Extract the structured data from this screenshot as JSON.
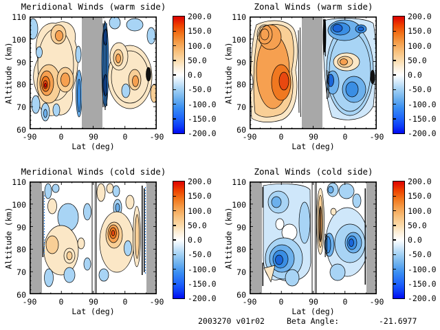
{
  "panels": [
    {
      "key": "meridional-warm",
      "title": "Meridional Winds (warm side)",
      "xlabel": "Lat (deg)",
      "ylabel": "Altitude (km)",
      "x_ticks": [
        "-90",
        "0",
        "90",
        "0",
        "-90"
      ],
      "y_ticks": [
        "110",
        "100",
        "90",
        "80",
        "70",
        "60"
      ]
    },
    {
      "key": "zonal-warm",
      "title": "Zonal Winds (warm side)",
      "xlabel": "Lat (deg)",
      "ylabel": "Altitude (km)",
      "x_ticks": [
        "-90",
        "0",
        "90",
        "0",
        "-90"
      ],
      "y_ticks": [
        "110",
        "100",
        "90",
        "80",
        "70",
        "60"
      ]
    },
    {
      "key": "meridional-cold",
      "title": "Meridional Winds (cold side)",
      "xlabel": "Lat (deg)",
      "ylabel": "Altitude (km)",
      "x_ticks": [
        "-90",
        "0",
        "90",
        "0",
        "-90"
      ],
      "y_ticks": [
        "110",
        "100",
        "90",
        "80",
        "70",
        "60"
      ]
    },
    {
      "key": "zonal-cold",
      "title": "Zonal Winds (cold side)",
      "xlabel": "Lat (deg)",
      "ylabel": "Altitude (km)",
      "x_ticks": [
        "-90",
        "0",
        "90",
        "0",
        "-90"
      ],
      "y_ticks": [
        "110",
        "100",
        "90",
        "80",
        "70",
        "60"
      ]
    }
  ],
  "colorbar": {
    "ticks": [
      "200.0",
      "150.0",
      "100.0",
      "50.0",
      "0.0",
      "-50.0",
      "-100.0",
      "-150.0",
      "-200.0"
    ]
  },
  "footer": {
    "run_id": "2003270 v01r02",
    "beta_label": "Beta Angle:",
    "beta_value": "-21.6977"
  },
  "colors": {
    "positive_max": "#dd0000",
    "positive_mid": "#f6a050",
    "zero": "#ffffff",
    "negative_mid": "#3a8ee4",
    "negative_max": "#0008f0",
    "masked_gray": "#a8a8a8"
  },
  "chart_data": [
    {
      "type": "heatmap",
      "subtype": "filled_contour_latitude_altitude_section",
      "title": "Meridional Winds (warm side)",
      "xlabel": "Lat (deg)",
      "ylabel": "Altitude (km)",
      "x_tick_labels": [
        "-90",
        "0",
        "90",
        "0",
        "-90"
      ],
      "x_axis_note": "latitude runs -90 to +90 (ascending side) then folds back to -90 (descending side)",
      "ylim": [
        60,
        110
      ],
      "y_tick_labels": [
        110,
        100,
        90,
        80,
        70,
        60
      ],
      "colorbar_range": [
        -200,
        200
      ],
      "colorbar_tick_interval": 50,
      "contour_interval": 25,
      "legend_position": "right colorbar",
      "grid": false,
      "masked_regions": [
        "gray vertical band around the +90 fold (lat ~+60 ascending to ~+60 descending)"
      ],
      "features": [
        "Patchy positive (orange) cells to ~+100 on ascending side, strongest near 78-82 km between lat -40 and +40",
        "Small intense core ~+150 near 80 km, lat ~-20",
        "Tight negative (blue) contour band to ~-150 immediately after the gray gap (descending lat ~60-80)",
        "Scattered weak negative cells (-25 to -75) below 75 km and near the poles",
        "Weaker mixed cream/orange cells (+25 to +75) on descending side near 85-100 km"
      ]
    },
    {
      "type": "heatmap",
      "subtype": "filled_contour_latitude_altitude_section",
      "title": "Zonal Winds (warm side)",
      "xlabel": "Lat (deg)",
      "ylabel": "Altitude (km)",
      "x_tick_labels": [
        "-90",
        "0",
        "90",
        "0",
        "-90"
      ],
      "x_axis_note": "latitude runs -90 to +90 (ascending side) then folds back to -90 (descending side)",
      "ylim": [
        60,
        110
      ],
      "y_tick_labels": [
        110,
        100,
        90,
        80,
        70,
        60
      ],
      "colorbar_range": [
        -200,
        200
      ],
      "colorbar_tick_interval": 50,
      "contour_interval": 25,
      "legend_position": "right colorbar",
      "grid": false,
      "masked_regions": [
        "gray vertical band around the +90 fold (lat ~+60 ascending to ~+60 descending)"
      ],
      "features": [
        "Broad strong positive (eastward) region filling the ascending side, peak ~+125 to +150 near 78-82 km, lat +10 to +40",
        "Broad negative (westward) region on descending side, cores ~-125 to -150 near 100-105 km and near 82-90 km",
        "Embedded positive pocket (+25 to +75) near 90-95 km mid-latitude on descending side",
        "Densely packed contours (near-black) hugging both edges of the gray gap"
      ]
    },
    {
      "type": "heatmap",
      "subtype": "filled_contour_latitude_altitude_section",
      "title": "Meridional Winds (cold side)",
      "xlabel": "Lat (deg)",
      "ylabel": "Altitude (km)",
      "x_tick_labels": [
        "-90",
        "0",
        "90",
        "0",
        "-90"
      ],
      "x_axis_note": "latitude runs -90 to +90 (ascending side) then folds back to -90 (descending side)",
      "ylim": [
        60,
        110
      ],
      "y_tick_labels": [
        110,
        100,
        90,
        80,
        70,
        60
      ],
      "colorbar_range": [
        -200,
        200
      ],
      "colorbar_tick_interval": 50,
      "contour_interval": 25,
      "legend_position": "right colorbar",
      "grid": false,
      "masked_regions": [
        "gray columns at both -90 edges (lat -90 to ~-55)",
        "thin white data gap at the +90 fold"
      ],
      "features": [
        "Mostly weak values (|v|<50) with scattered +/-25 to 50 cream and pale-blue cells",
        "Strong positive nested core ~+125 near 85-90 km at descending lat ~+20",
        "Tight negative band with dashed contours to ~-150 adjacent to the right gray mask (descending lat ~-50)",
        "Narrow light-orange column near descending lat ~-40 spanning 65-105 km"
      ]
    },
    {
      "type": "heatmap",
      "subtype": "filled_contour_latitude_altitude_section",
      "title": "Zonal Winds (cold side)",
      "xlabel": "Lat (deg)",
      "ylabel": "Altitude (km)",
      "x_tick_labels": [
        "-90",
        "0",
        "90",
        "0",
        "-90"
      ],
      "x_axis_note": "latitude runs -90 to +90 (ascending side) then folds back to -90 (descending side)",
      "ylim": [
        60,
        110
      ],
      "y_tick_labels": [
        110,
        100,
        90,
        80,
        70,
        60
      ],
      "colorbar_range": [
        -200,
        200
      ],
      "colorbar_tick_interval": 50,
      "contour_interval": 25,
      "legend_position": "right colorbar",
      "grid": false,
      "masked_regions": [
        "gray columns at both -90 edges (lat -90 to ~-55)",
        "thin white data gap at the +90 fold"
      ],
      "features": [
        "Predominantly negative (westward) pale-blue field of -25 to -75 over both sides",
        "Deep nested core ~-150 near 78-82 km, ascending lat ~0",
        "Second core ~-125 near 84-90 km, descending lat ~+20",
        "Narrow positive (+25 to +75) column with dense black contours just past the fold, spanning ~65-108 km",
        "Small cream (+25) triangle near 68-72 km at ascending lat ~-60"
      ]
    }
  ]
}
